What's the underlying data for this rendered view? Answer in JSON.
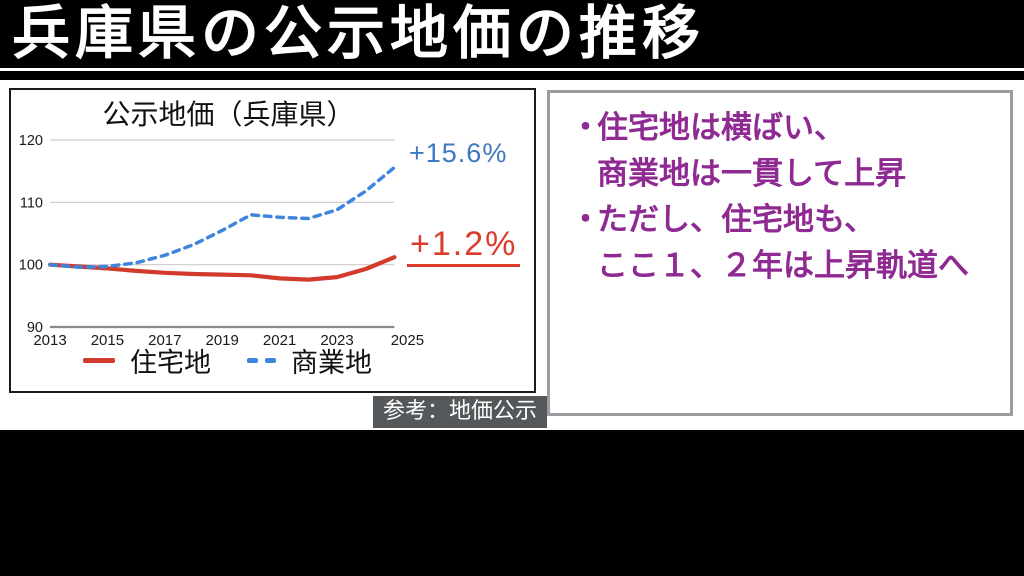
{
  "slide": {
    "title": "兵庫県の公示地価の推移",
    "source_caption": "参考：地価公示"
  },
  "colors": {
    "residential_line": "#D23B2B",
    "commercial_line": "#3F85DC",
    "commercial_annotation_text": "#3D79C0",
    "residential_annotation_text": "#DB3B2B",
    "note_text": "#8E2A92",
    "caption_background": "#54585A",
    "gridline": "#cccccc",
    "axis_line": "#8a8a8a"
  },
  "chart_data": {
    "type": "line",
    "title": "公示地価（兵庫県）",
    "x": [
      2013,
      2014,
      2015,
      2016,
      2017,
      2018,
      2019,
      2020,
      2021,
      2022,
      2023,
      2024,
      2025
    ],
    "x_tick_years": [
      2013,
      2015,
      2017,
      2019,
      2021,
      2023,
      2025
    ],
    "yticks": [
      90,
      100,
      110,
      120
    ],
    "ylim": [
      90,
      122
    ],
    "grid": true,
    "legend_position": "bottom",
    "series": [
      {
        "name": "住宅地",
        "style": "solid",
        "color": "#D23B2B",
        "values": [
          100.0,
          99.7,
          99.4,
          99.0,
          98.7,
          98.5,
          98.4,
          98.3,
          97.8,
          97.6,
          98.0,
          99.3,
          101.2
        ]
      },
      {
        "name": "商業地",
        "style": "dashed",
        "color": "#3F85DC",
        "values": [
          100.0,
          99.6,
          99.7,
          100.3,
          101.5,
          103.2,
          105.5,
          108.0,
          107.6,
          107.4,
          108.8,
          111.8,
          115.6
        ]
      }
    ],
    "annotations": [
      {
        "text": "+15.6%",
        "series": "商業地",
        "color": "#3D79C0",
        "underline": false
      },
      {
        "text": "+1.2%",
        "series": "住宅地",
        "color": "#DB3B2B",
        "underline": true
      }
    ]
  },
  "rightbox": {
    "lines": [
      {
        "bullet": "・",
        "text": "住宅地は横ばい、"
      },
      {
        "bullet": "",
        "text": "商業地は一貫して上昇"
      },
      {
        "bullet": "・",
        "text": "ただし、住宅地も、"
      },
      {
        "bullet": "",
        "text": "ここ１、２年は上昇軌道へ"
      }
    ]
  }
}
